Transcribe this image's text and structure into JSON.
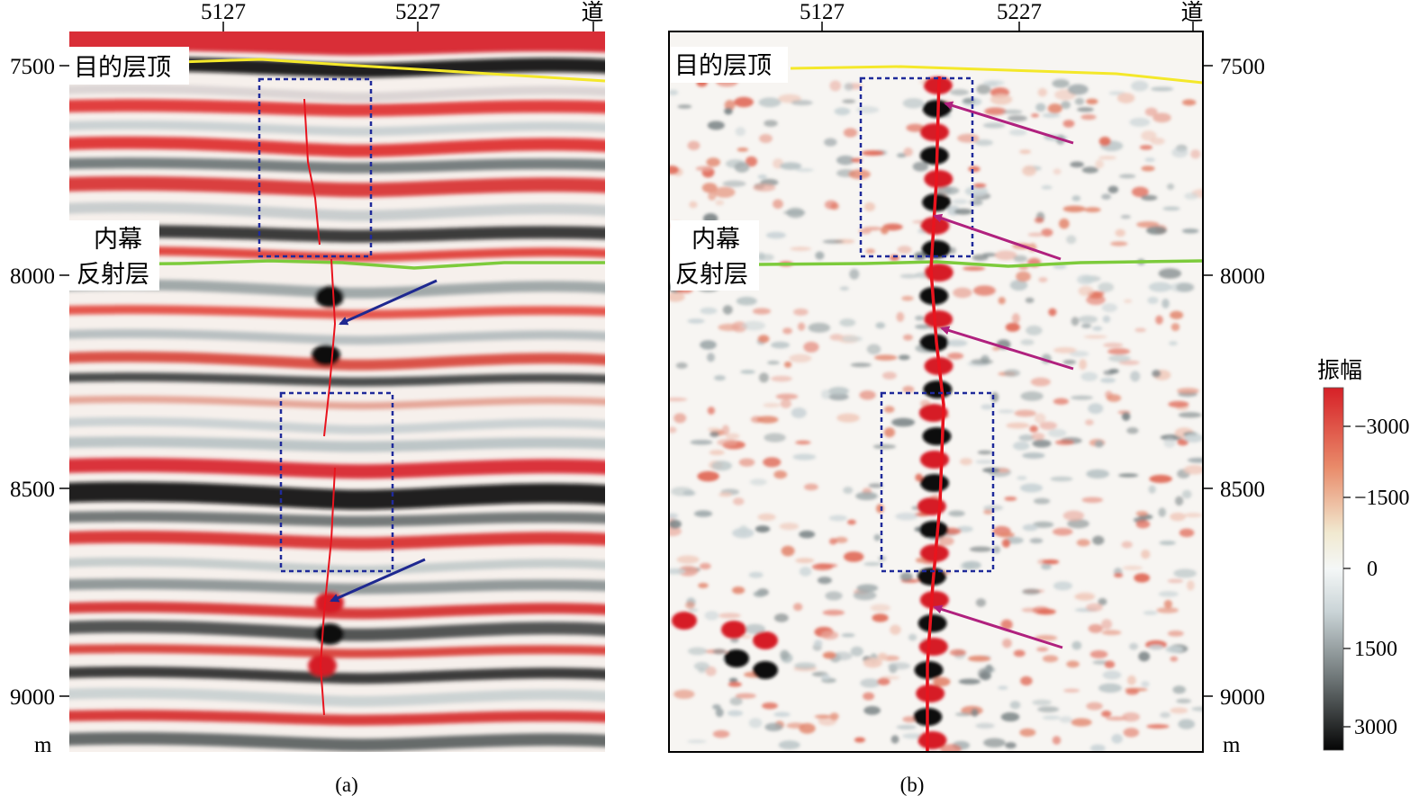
{
  "panels": [
    {
      "id": "a",
      "caption": "(a)",
      "trace_ticks": [
        "5127",
        "5227"
      ],
      "trace_unit": "道",
      "depth_ticks": [
        "7500",
        "8000",
        "8500",
        "9000"
      ],
      "depth_unit": "m",
      "horizon_top_label": "目的层顶",
      "horizon_inner_label_1": "内幕",
      "horizon_inner_label_2": "反射层"
    },
    {
      "id": "b",
      "caption": "(b)",
      "trace_ticks": [
        "5127",
        "5227"
      ],
      "trace_unit": "道",
      "depth_ticks": [
        "7500",
        "8000",
        "8500",
        "9000"
      ],
      "depth_unit": "m",
      "horizon_top_label": "目的层顶",
      "horizon_inner_label_1": "内幕",
      "horizon_inner_label_2": "反射层"
    }
  ],
  "colorbar": {
    "title": "振幅",
    "ticks": [
      "−3000",
      "−1500",
      "0",
      "1500",
      "3000"
    ],
    "colors": [
      "#d62027",
      "#e98b6a",
      "#f1e9d0",
      "#e6eef0",
      "#8a9496",
      "#0a0a0a"
    ]
  },
  "colors": {
    "fault": "#e8141e",
    "top_horizon": "#f4e82a",
    "inner_horizon": "#7dcb3c",
    "box": "#1f2a9a",
    "arrow_a": "#1e2890",
    "arrow_b": "#b0217e"
  }
}
